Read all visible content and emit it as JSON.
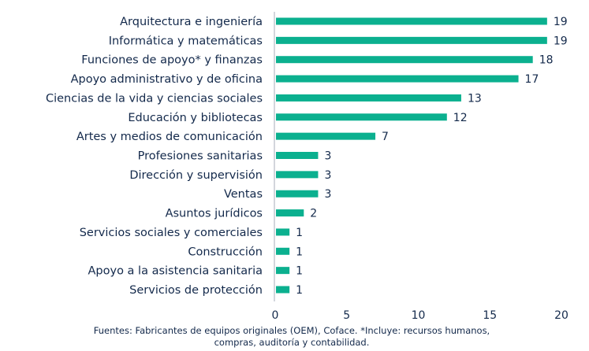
{
  "chart_data": {
    "type": "bar",
    "orientation": "horizontal",
    "categories": [
      "Arquitectura e ingeniería",
      "Informática y matemáticas",
      "Funciones de apoyo* y finanzas",
      "Apoyo administrativo y de oficina",
      "Ciencias de la vida y ciencias sociales",
      "Educación y bibliotecas",
      "Artes y medios de comunicación",
      "Profesiones sanitarias",
      "Dirección y supervisión",
      "Ventas",
      "Asuntos jurídicos",
      "Servicios sociales y comerciales",
      "Construcción",
      "Apoyo a la asistencia sanitaria",
      "Servicios de protección"
    ],
    "values": [
      19,
      19,
      18,
      17,
      13,
      12,
      7,
      3,
      3,
      3,
      2,
      1,
      1,
      1,
      1
    ],
    "xlim": [
      0,
      20
    ],
    "xticks": [
      "0",
      "5",
      "10",
      "15",
      "20"
    ],
    "title": "",
    "xlabel": "",
    "ylabel": "",
    "grid": false,
    "data_labels": true,
    "bar_color": "#0bb08f",
    "text_color": "#13294b"
  },
  "source": {
    "line1": "Fuentes: Fabricantes de equipos originales (OEM), Coface. *Incluye: recursos humanos,",
    "line2": "compras, auditoría y contabilidad."
  }
}
